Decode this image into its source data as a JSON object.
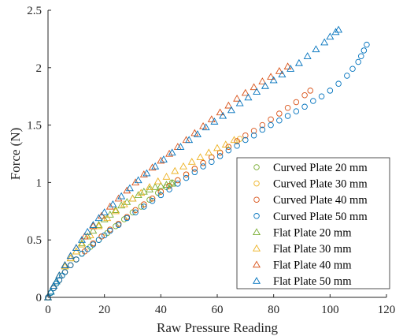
{
  "chart_data": {
    "type": "scatter",
    "xlabel": "Raw Pressure Reading",
    "ylabel": "Force (N)",
    "xlim": [
      0,
      120
    ],
    "ylim": [
      0,
      2.5
    ],
    "xticks": [
      0,
      20,
      40,
      60,
      80,
      100,
      120
    ],
    "yticks": [
      0,
      0.5,
      1,
      1.5,
      2,
      2.5
    ],
    "xtick_labels": [
      "0",
      "20",
      "40",
      "60",
      "80",
      "100",
      "120"
    ],
    "ytick_labels": [
      "0",
      "0.5",
      "1",
      "1.5",
      "2",
      "2.5"
    ],
    "grid": false,
    "legend_position": "bottom-right",
    "series": [
      {
        "name": "Curved Plate 20 mm",
        "marker": "circle",
        "color": "#77AC30",
        "x": [
          0,
          1,
          2,
          3,
          4,
          5,
          6,
          8,
          10,
          12,
          15,
          18,
          21,
          24,
          27,
          30,
          33,
          36,
          39,
          42,
          44
        ],
        "y": [
          0,
          0.04,
          0.08,
          0.12,
          0.15,
          0.19,
          0.22,
          0.28,
          0.33,
          0.38,
          0.44,
          0.5,
          0.56,
          0.62,
          0.68,
          0.74,
          0.79,
          0.85,
          0.91,
          0.96,
          1.0
        ]
      },
      {
        "name": "Curved Plate 30 mm",
        "marker": "circle",
        "color": "#EDB120",
        "x": [
          0,
          2,
          4,
          6,
          8,
          10,
          13,
          16,
          19,
          22,
          25,
          28,
          31,
          34,
          37,
          40,
          43,
          46,
          49,
          52,
          55,
          58,
          61,
          64,
          67,
          68
        ],
        "y": [
          0,
          0.08,
          0.15,
          0.22,
          0.28,
          0.33,
          0.4,
          0.47,
          0.53,
          0.59,
          0.64,
          0.7,
          0.76,
          0.81,
          0.86,
          0.92,
          0.97,
          1.02,
          1.07,
          1.12,
          1.17,
          1.22,
          1.26,
          1.31,
          1.36,
          1.38
        ]
      },
      {
        "name": "Curved Plate 40 mm",
        "marker": "circle",
        "color": "#D95319",
        "x": [
          0,
          2,
          4,
          6,
          8,
          10,
          13,
          16,
          19,
          22,
          25,
          28,
          31,
          34,
          37,
          40,
          43,
          46,
          49,
          52,
          55,
          58,
          61,
          64,
          67,
          70,
          73,
          76,
          79,
          82,
          85,
          88,
          91,
          93
        ],
        "y": [
          0,
          0.08,
          0.15,
          0.22,
          0.28,
          0.33,
          0.4,
          0.47,
          0.53,
          0.59,
          0.64,
          0.7,
          0.76,
          0.81,
          0.86,
          0.92,
          0.97,
          1.02,
          1.07,
          1.12,
          1.17,
          1.22,
          1.26,
          1.31,
          1.36,
          1.41,
          1.45,
          1.5,
          1.55,
          1.6,
          1.65,
          1.7,
          1.76,
          1.8
        ]
      },
      {
        "name": "Curved Plate 50 mm",
        "marker": "circle",
        "color": "#0072BD",
        "x": [
          0,
          1,
          2,
          3,
          4,
          5,
          6,
          8,
          10,
          12,
          14,
          16,
          18,
          20,
          22,
          25,
          28,
          31,
          34,
          37,
          40,
          43,
          46,
          49,
          52,
          55,
          58,
          61,
          64,
          67,
          70,
          73,
          76,
          79,
          82,
          85,
          88,
          91,
          94,
          97,
          100,
          103,
          106,
          108,
          110,
          111,
          112,
          113
        ],
        "y": [
          0,
          0.04,
          0.08,
          0.12,
          0.15,
          0.19,
          0.22,
          0.28,
          0.33,
          0.38,
          0.42,
          0.46,
          0.5,
          0.54,
          0.58,
          0.63,
          0.69,
          0.74,
          0.79,
          0.84,
          0.89,
          0.94,
          0.99,
          1.04,
          1.09,
          1.14,
          1.18,
          1.23,
          1.28,
          1.32,
          1.37,
          1.41,
          1.46,
          1.5,
          1.54,
          1.58,
          1.62,
          1.66,
          1.71,
          1.75,
          1.8,
          1.86,
          1.93,
          1.99,
          2.05,
          2.1,
          2.15,
          2.2
        ]
      },
      {
        "name": "Flat Plate 20 mm",
        "marker": "triangle",
        "color": "#77AC30",
        "x": [
          0,
          1,
          2,
          3,
          4,
          6,
          8,
          10,
          12,
          14,
          16,
          18,
          20,
          22,
          24,
          26,
          28,
          30,
          32,
          34,
          36,
          38,
          40,
          42,
          44
        ],
        "y": [
          0,
          0.05,
          0.1,
          0.14,
          0.19,
          0.27,
          0.34,
          0.4,
          0.47,
          0.53,
          0.58,
          0.63,
          0.68,
          0.72,
          0.76,
          0.8,
          0.83,
          0.86,
          0.89,
          0.92,
          0.94,
          0.96,
          0.97,
          0.98,
          0.99
        ]
      },
      {
        "name": "Flat Plate 30 mm",
        "marker": "triangle",
        "color": "#EDB120",
        "x": [
          0,
          2,
          4,
          6,
          8,
          10,
          12,
          15,
          18,
          21,
          24,
          27,
          30,
          33,
          36,
          39,
          42,
          45,
          48,
          51,
          54,
          57,
          60,
          63,
          66
        ],
        "y": [
          0,
          0.1,
          0.19,
          0.27,
          0.34,
          0.4,
          0.46,
          0.54,
          0.62,
          0.69,
          0.75,
          0.81,
          0.86,
          0.91,
          0.96,
          1.01,
          1.05,
          1.1,
          1.14,
          1.18,
          1.22,
          1.26,
          1.3,
          1.33,
          1.37
        ]
      },
      {
        "name": "Flat Plate 40 mm",
        "marker": "triangle",
        "color": "#D95319",
        "x": [
          0,
          2,
          4,
          6,
          8,
          10,
          13,
          16,
          19,
          22,
          25,
          28,
          31,
          34,
          37,
          40,
          43,
          46,
          49,
          52,
          55,
          58,
          61,
          64,
          67,
          70,
          73,
          76,
          79,
          82,
          85
        ],
        "y": [
          0,
          0.1,
          0.19,
          0.28,
          0.36,
          0.43,
          0.53,
          0.62,
          0.71,
          0.79,
          0.86,
          0.93,
          1.0,
          1.07,
          1.13,
          1.19,
          1.25,
          1.31,
          1.37,
          1.43,
          1.49,
          1.55,
          1.61,
          1.67,
          1.73,
          1.78,
          1.83,
          1.88,
          1.92,
          1.97,
          2.01
        ]
      },
      {
        "name": "Flat Plate 50 mm",
        "marker": "triangle",
        "color": "#0072BD",
        "x": [
          0,
          1,
          2,
          3,
          4,
          6,
          8,
          10,
          12,
          14,
          16,
          18,
          20,
          23,
          26,
          29,
          32,
          35,
          38,
          41,
          44,
          47,
          50,
          53,
          56,
          59,
          62,
          65,
          68,
          71,
          74,
          77,
          80,
          83,
          86,
          89,
          92,
          95,
          98,
          100,
          102,
          103
        ],
        "y": [
          0,
          0.05,
          0.1,
          0.14,
          0.19,
          0.28,
          0.36,
          0.43,
          0.5,
          0.57,
          0.63,
          0.69,
          0.74,
          0.81,
          0.88,
          0.95,
          1.02,
          1.08,
          1.14,
          1.2,
          1.26,
          1.31,
          1.37,
          1.42,
          1.48,
          1.53,
          1.58,
          1.63,
          1.69,
          1.74,
          1.79,
          1.84,
          1.89,
          1.94,
          1.99,
          2.04,
          2.1,
          2.16,
          2.22,
          2.27,
          2.31,
          2.33
        ]
      }
    ]
  }
}
